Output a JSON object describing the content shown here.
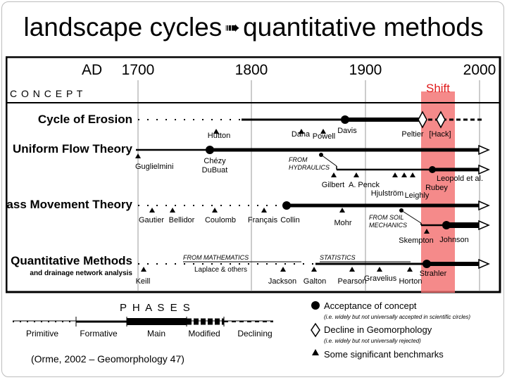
{
  "title": {
    "left": "landscape cycles",
    "right": "quantitative methods"
  },
  "source": "(Orme, 2002 – Geomorphology 47)",
  "timeline": {
    "prefix": "AD",
    "years": [
      "1700",
      "1800",
      "1900",
      "2000"
    ]
  },
  "concept_label": "C O N C E P T",
  "shift_label": "Shift",
  "rows": [
    {
      "label": "Cycle of Erosion",
      "sublabel": ""
    },
    {
      "label": "Uniform Flow Theory",
      "sublabel": ""
    },
    {
      "label": "Mass Movement Theory",
      "sublabel": ""
    },
    {
      "label": "Quantitative Methods",
      "sublabel": "and drainage network analysis"
    }
  ],
  "names": {
    "hutton": "Hutton",
    "dana": "Dana",
    "powell": "Powell",
    "davis": "Davis",
    "peltier": "Peltier",
    "hack": "[Hack]",
    "guglielmini": "Guglielmini",
    "chezy": "Chézy",
    "dubuat": "DuBuat",
    "from_hydraulics_1": "FROM",
    "from_hydraulics_2": "HYDRAULICS",
    "gilbert": "Gilbert",
    "penck": "A. Penck",
    "hjulstrom": "Hjulström",
    "leighly": "Leighly",
    "leopold": "Leopold et al.",
    "rubey": "Rubey",
    "gautier": "Gautier",
    "bellidor": "Bellidor",
    "coulomb": "Coulomb",
    "francais": "Français",
    "collin": "Collin",
    "mohr": "Mohr",
    "from_soil_1": "FROM SOIL",
    "from_soil_2": "MECHANICS",
    "skempton": "Skempton",
    "johnson": "Johnson",
    "from_math": "FROM MATHEMATICS",
    "laplace": "Laplace & others",
    "statistics": "STATISTICS",
    "keill": "Keill",
    "jackson": "Jackson",
    "galton": "Galton",
    "pearson": "Pearson",
    "gravelius": "Gravelius",
    "horton": "Horton",
    "strahler": "Strahler"
  },
  "phases": {
    "title": "P H A S E S",
    "labels": [
      "Primitive",
      "Formative",
      "Main",
      "Modified",
      "Declining"
    ]
  },
  "legend": [
    {
      "symbol": "circle-filled",
      "title": "Acceptance of concept",
      "note": "(i.e. widely but not universally accepted in scientific circles)"
    },
    {
      "symbol": "diamond-open",
      "title": "Decline in Geomorphology",
      "note": "(i.e. widely but not universally rejected)"
    },
    {
      "symbol": "triangle-filled",
      "title": "Some significant benchmarks",
      "note": ""
    }
  ],
  "colors": {
    "shift_band": "#f26d6d",
    "shift_text": "#e01b1b",
    "ink": "#000000"
  }
}
